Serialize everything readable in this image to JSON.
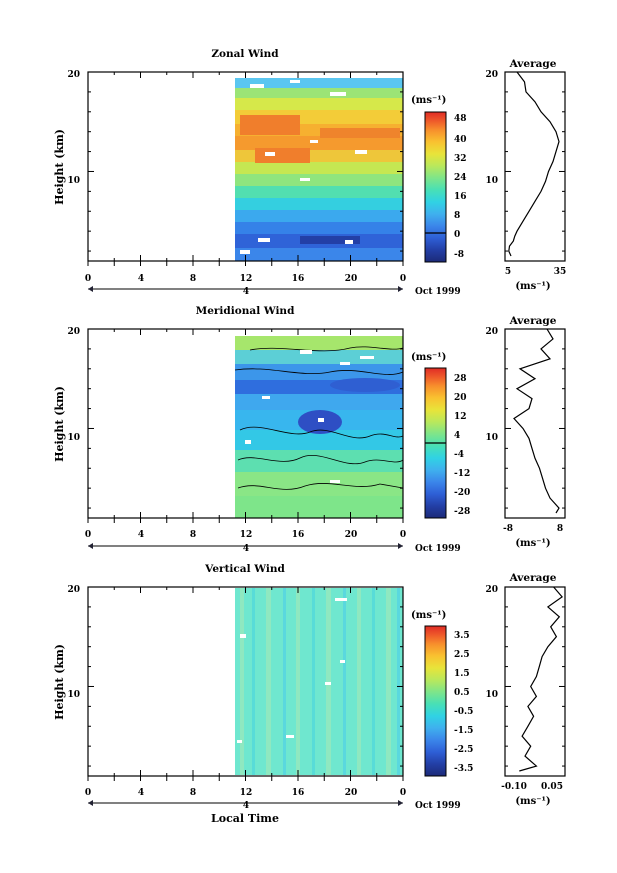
{
  "figure": {
    "date_label": "Oct 1999",
    "date_marker": "4",
    "xlabel": "Local Time",
    "profile_title": "Average",
    "colorbar_unit": "(ms⁻¹)",
    "profile_xunit": "(ms⁻¹)",
    "ylabel": "Height (km)"
  },
  "chart_data": [
    {
      "type": "heatmap",
      "title": "Zonal Wind",
      "xlabel": "Local Time",
      "ylabel": "Height (km)",
      "x_ticks": [
        "0",
        "4",
        "8",
        "12",
        "16",
        "20",
        "0"
      ],
      "y_ticks": [
        "20",
        "10"
      ],
      "xlim": [
        0,
        24
      ],
      "ylim": [
        1,
        20
      ],
      "data_start_hour": 11,
      "colorbar": {
        "unit": "(ms⁻¹)",
        "ticks": [
          "48",
          "40",
          "32",
          "24",
          "16",
          "8",
          "0",
          "-8"
        ],
        "range": [
          -10,
          50
        ],
        "contour_line": 0
      },
      "profile": {
        "title": "Average",
        "x_ticks": [
          "5",
          "35"
        ],
        "xlim": [
          0,
          40
        ],
        "x_unit": "(ms⁻¹)",
        "height_km": [
          1.5,
          2,
          2.5,
          3,
          3.5,
          4,
          5,
          6,
          7,
          8,
          9,
          10,
          11,
          12,
          13,
          14,
          15,
          16,
          17,
          18,
          19,
          20
        ],
        "values": [
          4,
          2.5,
          3,
          5.5,
          6.5,
          8,
          12,
          16,
          20,
          24,
          27,
          29,
          32,
          34,
          36,
          34,
          30,
          24,
          20,
          14,
          13,
          8
        ]
      }
    },
    {
      "type": "heatmap",
      "title": "Meridional Wind",
      "xlabel": "Local Time",
      "ylabel": "Height (km)",
      "x_ticks": [
        "0",
        "4",
        "8",
        "12",
        "16",
        "20",
        "0"
      ],
      "y_ticks": [
        "20",
        "10"
      ],
      "xlim": [
        0,
        24
      ],
      "ylim": [
        1,
        20
      ],
      "data_start_hour": 11,
      "colorbar": {
        "unit": "(ms⁻¹)",
        "ticks": [
          "28",
          "20",
          "12",
          "4",
          "-4",
          "-12",
          "-20",
          "-28"
        ],
        "range": [
          -30,
          30
        ],
        "contour_line": 0
      },
      "profile": {
        "title": "Average",
        "x_ticks": [
          "-8",
          "8"
        ],
        "xlim": [
          -10,
          10
        ],
        "x_unit": "(ms⁻¹)",
        "height_km": [
          1.5,
          2,
          3,
          4,
          5,
          6,
          7,
          8,
          9,
          10,
          11,
          12,
          13,
          14,
          15,
          16,
          17,
          18,
          19,
          20
        ],
        "values": [
          7,
          8,
          5,
          3.5,
          2.5,
          1.5,
          0,
          -1,
          -2,
          -4,
          -7,
          -2,
          -1,
          -6,
          0,
          -5,
          5,
          2,
          6,
          4
        ]
      }
    },
    {
      "type": "heatmap",
      "title": "Vertical Wind",
      "xlabel": "Local Time",
      "ylabel": "Height (km)",
      "x_ticks": [
        "0",
        "4",
        "8",
        "12",
        "16",
        "20",
        "0"
      ],
      "y_ticks": [
        "20",
        "10"
      ],
      "xlim": [
        0,
        24
      ],
      "ylim": [
        1,
        20
      ],
      "data_start_hour": 11,
      "colorbar": {
        "unit": "(ms⁻¹)",
        "ticks": [
          "3.5",
          "2.5",
          "1.5",
          "0.5",
          "-0.5",
          "-1.5",
          "-2.5",
          "-3.5"
        ],
        "range": [
          -4,
          4
        ],
        "contour_line": null
      },
      "profile": {
        "title": "Average",
        "x_ticks": [
          "-0.10",
          "0.05"
        ],
        "xlim": [
          -0.13,
          0.08
        ],
        "x_unit": "(ms⁻¹)",
        "height_km": [
          1.5,
          2,
          3,
          4,
          5,
          6,
          7,
          8,
          9,
          10,
          11,
          12,
          13,
          14,
          15,
          16,
          17,
          18,
          19,
          20
        ],
        "values": [
          -0.08,
          -0.02,
          -0.06,
          -0.04,
          -0.07,
          -0.05,
          -0.03,
          -0.05,
          -0.02,
          -0.04,
          -0.02,
          -0.01,
          0.0,
          0.02,
          0.05,
          0.03,
          0.06,
          0.02,
          0.07,
          0.04
        ]
      }
    }
  ],
  "colors": {
    "colormap": [
      "#1c2a78",
      "#233fa6",
      "#2e5fd6",
      "#3b86ea",
      "#3fb0ee",
      "#30d2e4",
      "#48e0b6",
      "#7ee58a",
      "#b9e85c",
      "#e8e43a",
      "#f9c230",
      "#f78f2c",
      "#ee5a2a",
      "#e02b25"
    ]
  }
}
